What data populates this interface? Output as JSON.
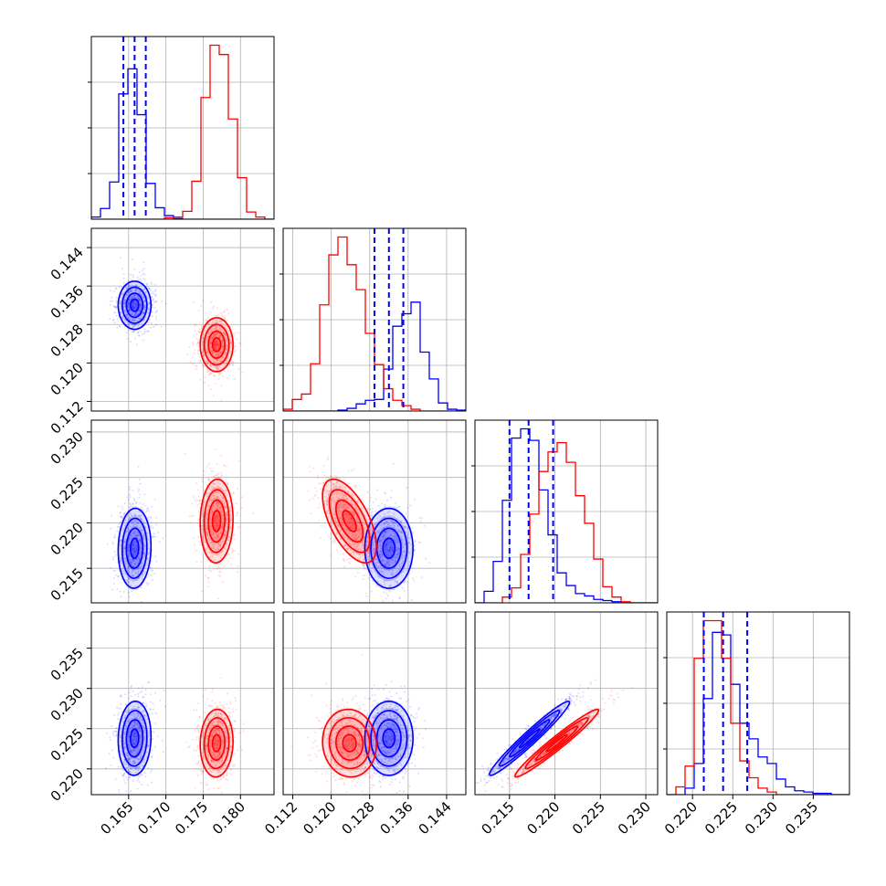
{
  "chart_data": {
    "type": "corner",
    "title": "",
    "grid": true,
    "colors": {
      "blue": "#0000ff",
      "red": "#ff0000"
    },
    "parameters": [
      {
        "range": [
          0.16,
          0.1845
        ],
        "ticks": [
          0.165,
          0.17,
          0.175,
          0.18
        ],
        "tick_labels": [
          "0.165",
          "0.170",
          "0.175",
          "0.180"
        ],
        "quantiles_blue": [
          0.1643,
          0.1658,
          0.1673
        ]
      },
      {
        "range": [
          0.11,
          0.148
        ],
        "ticks": [
          0.112,
          0.12,
          0.128,
          0.136,
          0.144
        ],
        "tick_labels": [
          "0.112",
          "0.120",
          "0.128",
          "0.136",
          "0.144"
        ],
        "quantiles_blue": [
          0.129,
          0.132,
          0.135
        ]
      },
      {
        "range": [
          0.2112,
          0.2313
        ],
        "ticks": [
          0.215,
          0.22,
          0.225,
          0.23
        ],
        "tick_labels": [
          "0.215",
          "0.220",
          "0.225",
          "0.230"
        ],
        "quantiles_blue": [
          0.215,
          0.2171,
          0.2198
        ]
      },
      {
        "range": [
          0.2168,
          0.2395
        ],
        "ticks": [
          0.22,
          0.225,
          0.23,
          0.235
        ],
        "tick_labels": [
          "0.220",
          "0.225",
          "0.230",
          "0.235"
        ],
        "quantiles_blue": [
          0.2214,
          0.2238,
          0.2268
        ]
      }
    ],
    "series": [
      {
        "color": "blue",
        "mean": [
          0.1658,
          0.132,
          0.2172,
          0.2238
        ],
        "std": [
          0.0011,
          0.0025,
          0.0022,
          0.0023
        ],
        "corr": [
          [
            1.0,
            0.0,
            0.05,
            0.05
          ],
          [
            0.0,
            1.0,
            0.0,
            0.0
          ],
          [
            0.05,
            0.0,
            1.0,
            0.97
          ],
          [
            0.05,
            0.0,
            0.97,
            1.0
          ]
        ],
        "hist": [
          [
            0.3,
            1.5,
            5.2,
            17.5,
            21.0,
            14.6,
            5.0,
            1.6,
            0.5,
            0.1,
            0,
            0,
            0,
            0,
            0,
            0,
            0,
            0,
            0,
            0
          ],
          [
            0,
            0,
            0,
            0,
            0,
            0,
            0.1,
            0.3,
            0.8,
            1.2,
            1.3,
            4.7,
            9.5,
            10.9,
            12.2,
            6.6,
            3.6,
            0.9,
            0.2,
            0.1
          ],
          [
            0,
            1.0,
            3.6,
            8.9,
            14.3,
            15.1,
            14.1,
            9.8,
            5.9,
            2.6,
            1.5,
            0.8,
            0.6,
            0.3,
            0.2,
            0.1,
            0,
            0,
            0,
            0
          ],
          [
            0,
            0,
            0.5,
            2.4,
            7.4,
            12.5,
            12.3,
            8.5,
            5.5,
            4.3,
            2.9,
            2.4,
            1.2,
            0.6,
            0.3,
            0.2,
            0.1,
            0.1,
            0,
            0
          ]
        ]
      },
      {
        "color": "red",
        "mean": [
          0.1768,
          0.1238,
          0.2202,
          0.2232
        ],
        "std": [
          0.0011,
          0.0028,
          0.0023,
          0.0021
        ],
        "corr": [
          [
            1.0,
            0.0,
            0.05,
            0.05
          ],
          [
            0.0,
            1.0,
            -0.6,
            -0.05
          ],
          [
            0.05,
            -0.6,
            1.0,
            0.97
          ],
          [
            0.05,
            -0.05,
            0.97,
            1.0
          ]
        ],
        "hist": [
          [
            0,
            0,
            0,
            0,
            0,
            0,
            0,
            0,
            0.2,
            0.3,
            1.1,
            5.3,
            17.0,
            24.3,
            23.0,
            14.0,
            5.8,
            1.0,
            0.3,
            0
          ],
          [
            0.2,
            1.3,
            1.9,
            5.3,
            11.9,
            17.5,
            19.5,
            16.4,
            13.6,
            8.7,
            5.2,
            2.5,
            1.2,
            0.6,
            0.2,
            0,
            0,
            0,
            0,
            0
          ],
          [
            0,
            0,
            0,
            0.5,
            1.3,
            4.2,
            7.7,
            11.4,
            13.1,
            13.9,
            12.2,
            9.3,
            6.9,
            3.8,
            1.4,
            0.5,
            0.1,
            0,
            0,
            0
          ],
          [
            0,
            0.6,
            2.2,
            10.5,
            13.4,
            13.4,
            10.5,
            5.5,
            2.6,
            1.3,
            0.5,
            0.2,
            0,
            0,
            0,
            0,
            0,
            0,
            0,
            0
          ]
        ]
      }
    ]
  }
}
